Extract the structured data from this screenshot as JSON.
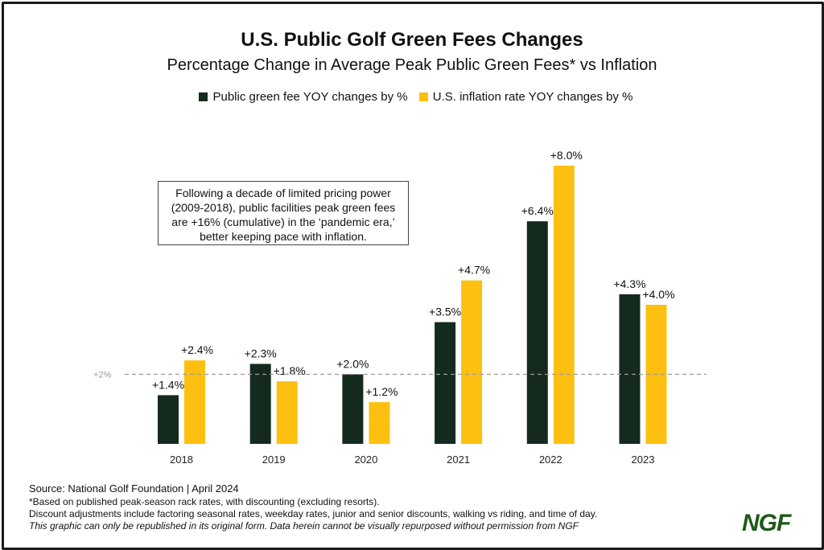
{
  "chart_data": {
    "type": "bar",
    "title": "U.S. Public Golf Green Fees Changes",
    "subtitle": "Percentage Change in Average Peak Public Green Fees* vs Inflation",
    "categories": [
      "2018",
      "2019",
      "2020",
      "2021",
      "2022",
      "2023"
    ],
    "series": [
      {
        "name": "Public green fee YOY changes by %",
        "color": "#152a1e",
        "values": [
          1.4,
          2.3,
          2.0,
          3.5,
          6.4,
          4.3
        ],
        "labels": [
          "+1.4%",
          "+2.3%",
          "+2.0%",
          "+3.5%",
          "+6.4%",
          "+4.3%"
        ]
      },
      {
        "name": "U.S. inflation rate YOY changes by %",
        "color": "#fdc010",
        "values": [
          2.4,
          1.8,
          1.2,
          4.7,
          8.0,
          4.0
        ],
        "labels": [
          "+2.4%",
          "+1.8%",
          "+1.2%",
          "+4.7%",
          "+8.0%",
          "+4.0%"
        ]
      }
    ],
    "reference_line": {
      "value": 2,
      "label": "+2%"
    },
    "ylim": [
      0,
      8
    ],
    "grid": false,
    "legend": "top-center",
    "annotation": "Following a decade of limited pricing power (2009-2018), public facilities peak green fees are +16% (cumulative) in the ‘pandemic era,’ better keeping pace with inflation."
  },
  "footer": {
    "source": "Source: National Golf Foundation | April 2024",
    "note1": "*Based on published peak-season rack rates, with discounting (excluding resorts).",
    "note2": "Discount adjustments include factoring seasonal rates, weekday rates, junior and senior discounts, walking vs riding, and time of day.",
    "note3": "This graphic can only be republished in its original form. Data herein cannot be visually repurposed without permission from NGF",
    "logo": "NGF"
  }
}
